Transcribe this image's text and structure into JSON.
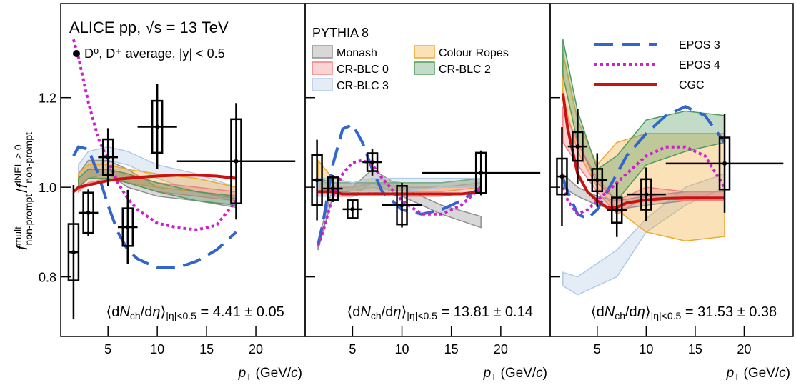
{
  "chart_data": [
    {
      "type": "scatter",
      "title": "ALICE pp, √s = 13 TeV",
      "ylabel": [
        "f",
        "mult",
        "non-prompt",
        " / ",
        "f",
        "INEL > 0",
        "non-prompt"
      ],
      "xlabel": [
        "p",
        "T",
        " (GeV/",
        "c",
        ")"
      ],
      "annotation": [
        "⟨d",
        "N",
        "ch",
        "/d",
        "η",
        "⟩",
        "|η|<0.5",
        " = 4.41 ± 0.05"
      ],
      "xlim": [
        0.2,
        25
      ],
      "ylim": [
        0.667,
        1.41
      ],
      "xticks": [
        5,
        10,
        15,
        20
      ],
      "yticks": [
        0.8,
        {
          "value": 1,
          "label": "1.0"
        },
        1.2
      ],
      "series": [
        {
          "type": "band",
          "color": "#b3c9e6",
          "x": [
            2,
            3,
            5,
            7,
            10,
            14,
            18
          ],
          "low": [
            1.02,
            1.04,
            1.06,
            1.05,
            1.02,
            0.99,
            0.97
          ],
          "high": [
            1.05,
            1.08,
            1.09,
            1.08,
            1.05,
            1.03,
            1.0
          ]
        },
        {
          "type": "band",
          "color": "#909090",
          "x": [
            2,
            3,
            5,
            7,
            10,
            14,
            18
          ],
          "low": [
            1.0,
            1.02,
            1.03,
            1.0,
            0.98,
            0.97,
            0.955
          ],
          "high": [
            1.03,
            1.06,
            1.06,
            1.04,
            1.0,
            0.99,
            0.975
          ]
        },
        {
          "type": "band",
          "color": "#f0a830",
          "x": [
            2,
            3,
            5,
            7,
            10,
            14,
            18
          ],
          "low": [
            1.0,
            1.02,
            1.02,
            1.01,
            1.0,
            0.99,
            0.98
          ],
          "high": [
            1.03,
            1.05,
            1.05,
            1.04,
            1.03,
            1.02,
            1.0
          ]
        },
        {
          "type": "band",
          "color": "#f08080",
          "x": [
            2,
            3,
            5,
            7,
            10,
            14,
            18
          ],
          "low": [
            0.99,
            1.01,
            1.02,
            1.01,
            0.99,
            0.98,
            0.97
          ],
          "high": [
            1.02,
            1.04,
            1.04,
            1.03,
            1.01,
            1.0,
            0.99
          ]
        },
        {
          "type": "band",
          "color": "#4f9a5f",
          "x": [
            2,
            3,
            5,
            7,
            10,
            14,
            18
          ],
          "low": [
            1.0,
            1.02,
            1.02,
            1.01,
            0.99,
            0.97,
            0.96
          ],
          "high": [
            1.02,
            1.04,
            1.04,
            1.03,
            1.01,
            0.99,
            0.98
          ]
        },
        {
          "type": "line",
          "color": "#3366cc",
          "dash": "dashed",
          "x": [
            1.5,
            2,
            3,
            4,
            5,
            6,
            7,
            8,
            10,
            12,
            14,
            16,
            18
          ],
          "values": [
            1.07,
            1.09,
            1.085,
            1.03,
            0.96,
            0.9,
            0.86,
            0.84,
            0.82,
            0.82,
            0.835,
            0.86,
            0.9
          ]
        },
        {
          "type": "line",
          "color": "#cc22cc",
          "dash": "dotted",
          "x": [
            1.5,
            2,
            3,
            4,
            5,
            6,
            7,
            8,
            10,
            12,
            14,
            16,
            18
          ],
          "values": [
            1.33,
            1.29,
            1.19,
            1.11,
            1.06,
            1.01,
            0.975,
            0.95,
            0.92,
            0.91,
            0.905,
            0.915,
            0.97
          ]
        },
        {
          "type": "line",
          "color": "#cc1111",
          "dash": "solid",
          "x": [
            1.5,
            2,
            3,
            4,
            5,
            6,
            7,
            8,
            10,
            12,
            14,
            16,
            18
          ],
          "values": [
            0.99,
            1.0,
            1.005,
            1.01,
            1.015,
            1.018,
            1.02,
            1.022,
            1.025,
            1.027,
            1.027,
            1.025,
            1.02
          ]
        },
        {
          "type": "points",
          "name": "D⁰, D⁺ average, |y| < 0.5",
          "color": "#000000",
          "x": [
            1.5,
            3,
            5,
            7,
            10,
            18
          ],
          "values": [
            0.855,
            0.943,
            1.067,
            0.911,
            1.135,
            1.058
          ],
          "xerr": [
            0.5,
            1,
            1,
            1,
            2,
            6
          ],
          "yerr": [
            0.15,
            0.052,
            0.065,
            0.083,
            0.095,
            0.13
          ],
          "syst": [
            0.063,
            0.045,
            0.04,
            0.042,
            0.058,
            0.094
          ]
        }
      ]
    },
    {
      "type": "scatter",
      "legend_title": "PYTHIA 8",
      "xlabel": [
        "p",
        "T",
        " (GeV/",
        "c",
        ")"
      ],
      "annotation": [
        "⟨d",
        "N",
        "ch",
        "/d",
        "η",
        "⟩",
        "|η|<0.5",
        " = 13.81 ± 0.14"
      ],
      "xlim": [
        0.2,
        25
      ],
      "ylim": [
        0.667,
        1.41
      ],
      "xticks": [
        5,
        10,
        15,
        20
      ],
      "series": [
        {
          "type": "band",
          "name": "Monash",
          "color": "#909090",
          "x": [
            1.5,
            3,
            5,
            7,
            10,
            14,
            18
          ],
          "low": [
            0.86,
            0.98,
            0.98,
            1.01,
            0.98,
            0.94,
            0.91
          ],
          "high": [
            0.88,
            1.0,
            1.0,
            1.04,
            1.0,
            0.96,
            0.935
          ]
        },
        {
          "type": "band",
          "name": "Colour Ropes",
          "color": "#f0a830",
          "x": [
            1.5,
            3,
            5,
            7,
            10,
            14,
            18
          ],
          "low": [
            0.99,
            0.99,
            0.99,
            1.0,
            0.99,
            0.99,
            1.0
          ],
          "high": [
            1.06,
            1.02,
            1.01,
            1.02,
            1.01,
            1.01,
            1.02
          ]
        },
        {
          "type": "band",
          "name": "CR-BLC 0",
          "color": "#f08080",
          "x": [
            1.5,
            3,
            5,
            7,
            10,
            14,
            18
          ],
          "low": [
            0.98,
            0.98,
            0.98,
            0.99,
            0.98,
            0.98,
            0.99
          ],
          "high": [
            1.02,
            1.0,
            1.0,
            1.01,
            1.0,
            1.0,
            1.01
          ]
        },
        {
          "type": "band",
          "name": "CR-BLC 2",
          "color": "#4f9a5f",
          "x": [
            1.5,
            3,
            5,
            7,
            10,
            14,
            18
          ],
          "low": [
            0.99,
            0.99,
            0.99,
            0.99,
            0.99,
            1.0,
            1.0
          ],
          "high": [
            1.02,
            1.01,
            1.01,
            1.01,
            1.01,
            1.01,
            1.02
          ]
        },
        {
          "type": "band",
          "name": "CR-BLC 3",
          "color": "#b3c9e6",
          "x": [
            1.5,
            3,
            5,
            7,
            10,
            14,
            18
          ],
          "low": [
            0.98,
            0.98,
            0.99,
            0.99,
            0.99,
            1.0,
            1.0
          ],
          "high": [
            1.02,
            1.02,
            1.01,
            1.02,
            1.02,
            1.02,
            1.02
          ]
        },
        {
          "type": "line",
          "color": "#3366cc",
          "dash": "dashed",
          "x": [
            1.5,
            2,
            3,
            4,
            5,
            6,
            7,
            8,
            10,
            12,
            14,
            16,
            18
          ],
          "values": [
            0.87,
            0.92,
            1.05,
            1.13,
            1.14,
            1.1,
            1.04,
            0.99,
            0.95,
            0.94,
            0.95,
            0.97,
            1.0
          ]
        },
        {
          "type": "line",
          "color": "#cc22cc",
          "dash": "dotted",
          "x": [
            1.5,
            2,
            3,
            4,
            5,
            6,
            7,
            8,
            10,
            12,
            14,
            16,
            18
          ],
          "values": [
            0.87,
            0.9,
            0.98,
            1.03,
            1.055,
            1.06,
            1.05,
            1.02,
            0.97,
            0.94,
            0.94,
            0.96,
            1.0
          ]
        },
        {
          "type": "line",
          "color": "#cc1111",
          "dash": "solid",
          "x": [
            1.5,
            2,
            3,
            4,
            5,
            6,
            7,
            8,
            10,
            12,
            14,
            16,
            18
          ],
          "values": [
            0.99,
            0.99,
            0.99,
            0.985,
            0.985,
            0.985,
            0.985,
            0.985,
            0.985,
            0.985,
            0.985,
            0.985,
            0.99
          ]
        },
        {
          "type": "points",
          "color": "#000000",
          "x": [
            1.4,
            3,
            5,
            7,
            10,
            18
          ],
          "values": [
            1.016,
            0.997,
            0.951,
            1.056,
            0.96,
            1.032
          ],
          "xerr": [
            0.5,
            1,
            1,
            1,
            2,
            6
          ],
          "yerr": [
            0.09,
            0.03,
            0.02,
            0.03,
            0.05,
            0.05
          ],
          "syst": [
            0.056,
            0.025,
            0.02,
            0.02,
            0.043,
            0.045
          ]
        }
      ]
    },
    {
      "type": "scatter",
      "xlabel": [
        "p",
        "T",
        " (GeV/",
        "c",
        ")"
      ],
      "annotation": [
        "⟨d",
        "N",
        "ch",
        "/d",
        "η",
        "⟩",
        "|η|<0.5",
        " = 31.53 ± 0.38"
      ],
      "xlim": [
        0.2,
        25
      ],
      "ylim": [
        0.667,
        1.41
      ],
      "xticks": [
        5,
        10,
        15,
        20
      ],
      "series": [
        {
          "type": "band",
          "color": "#b3c9e6",
          "x": [
            1.5,
            3,
            5,
            7,
            10,
            14,
            18
          ],
          "low": [
            0.78,
            0.76,
            0.78,
            0.8,
            0.9,
            0.96,
            1.0
          ],
          "high": [
            0.81,
            0.8,
            0.83,
            0.86,
            0.93,
            1.0,
            1.03
          ]
        },
        {
          "type": "band",
          "color": "#f0a830",
          "x": [
            1.5,
            3,
            5,
            7,
            10,
            14,
            18
          ],
          "low": [
            1.2,
            1.08,
            1.0,
            0.95,
            0.9,
            0.88,
            0.89
          ],
          "high": [
            1.3,
            1.15,
            1.05,
            1.1,
            1.12,
            1.12,
            1.12
          ]
        },
        {
          "type": "band",
          "color": "#4f9a5f",
          "x": [
            1.5,
            3,
            5,
            7,
            10,
            14,
            18
          ],
          "low": [
            1.25,
            1.1,
            1.01,
            0.97,
            1.05,
            1.08,
            1.1
          ],
          "high": [
            1.33,
            1.17,
            1.04,
            1.07,
            1.15,
            1.17,
            1.16
          ]
        },
        {
          "type": "band",
          "color": "#909090",
          "x": [
            1.5,
            3,
            5,
            7,
            10,
            14,
            18
          ],
          "low": [
            1.0,
            0.98,
            0.96,
            0.95,
            0.96,
            0.97,
            0.97
          ],
          "high": [
            1.03,
            1.0,
            0.98,
            0.97,
            0.98,
            0.99,
            0.99
          ]
        },
        {
          "type": "band",
          "color": "#f08080",
          "x": [
            1.5,
            3,
            5,
            7,
            10,
            14,
            18
          ],
          "low": [
            1.1,
            1.05,
            0.99,
            0.94,
            0.98,
            0.97,
            0.97
          ],
          "high": [
            1.18,
            1.1,
            1.02,
            0.97,
            1.0,
            0.99,
            0.99
          ]
        },
        {
          "type": "line",
          "name": "EPOS 3",
          "color": "#3366cc",
          "dash": "dashed",
          "x": [
            1.5,
            2,
            3,
            4,
            5,
            6,
            7,
            8,
            10,
            12,
            14,
            16,
            18
          ],
          "values": [
            1.02,
            0.99,
            0.94,
            0.93,
            0.95,
            0.99,
            1.03,
            1.07,
            1.12,
            1.16,
            1.18,
            1.16,
            1.1
          ]
        },
        {
          "type": "line",
          "name": "EPOS 4",
          "color": "#cc22cc",
          "dash": "dotted",
          "x": [
            1.5,
            2,
            3,
            4,
            5,
            6,
            7,
            8,
            10,
            12,
            14,
            16,
            18
          ],
          "values": [
            1.0,
            0.97,
            0.94,
            0.95,
            0.97,
            0.99,
            1.01,
            1.03,
            1.07,
            1.09,
            1.09,
            1.07,
            1.0
          ]
        },
        {
          "type": "line",
          "name": "CGC",
          "color": "#cc1111",
          "dash": "solid",
          "x": [
            1.5,
            2,
            3,
            4,
            5,
            6,
            7,
            8,
            10,
            12,
            14,
            16,
            18
          ],
          "values": [
            1.21,
            1.13,
            1.03,
            0.99,
            0.97,
            0.955,
            0.955,
            0.965,
            0.972,
            0.975,
            0.976,
            0.976,
            0.976
          ]
        },
        {
          "type": "points",
          "color": "#000000",
          "x": [
            1.4,
            3,
            5,
            7,
            10,
            18
          ],
          "values": [
            1.024,
            1.091,
            1.016,
            0.949,
            0.984,
            1.053
          ],
          "xerr": [
            0.5,
            1,
            1,
            1,
            2,
            6
          ],
          "yerr": [
            0.11,
            0.083,
            0.06,
            0.06,
            0.06,
            0.11
          ],
          "syst": [
            0.04,
            0.032,
            0.025,
            0.028,
            0.034,
            0.058
          ]
        }
      ]
    }
  ]
}
